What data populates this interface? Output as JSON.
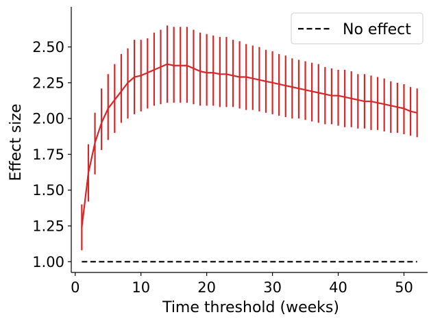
{
  "chart_data": {
    "type": "line",
    "title": "",
    "xlabel": "Time threshold (weeks)",
    "ylabel": "Effect size",
    "xlim": [
      -0.6,
      53.6
    ],
    "ylim": [
      0.925,
      2.78
    ],
    "xticks": [
      0,
      10,
      20,
      30,
      40,
      50
    ],
    "xtick_labels": [
      "0",
      "10",
      "20",
      "30",
      "40",
      "50"
    ],
    "yticks": [
      1.0,
      1.25,
      1.5,
      1.75,
      2.0,
      2.25,
      2.5
    ],
    "ytick_labels": [
      "1.00",
      "1.25",
      "1.50",
      "1.75",
      "2.00",
      "2.25",
      "2.50"
    ],
    "grid": false,
    "legend_position": "top-right",
    "series": [
      {
        "name": "",
        "color": "#d62728",
        "style": "solid-with-errorbars",
        "x": [
          1,
          2,
          3,
          4,
          5,
          6,
          7,
          8,
          9,
          10,
          11,
          12,
          13,
          14,
          15,
          16,
          17,
          18,
          19,
          20,
          21,
          22,
          23,
          24,
          25,
          26,
          27,
          28,
          29,
          30,
          31,
          32,
          33,
          34,
          35,
          36,
          37,
          38,
          39,
          40,
          41,
          42,
          43,
          44,
          45,
          46,
          47,
          48,
          49,
          50,
          51,
          52
        ],
        "y": [
          1.24,
          1.62,
          1.83,
          1.97,
          2.07,
          2.13,
          2.19,
          2.25,
          2.29,
          2.3,
          2.32,
          2.34,
          2.36,
          2.38,
          2.37,
          2.37,
          2.37,
          2.35,
          2.33,
          2.32,
          2.32,
          2.31,
          2.31,
          2.3,
          2.29,
          2.29,
          2.28,
          2.27,
          2.26,
          2.25,
          2.24,
          2.23,
          2.22,
          2.21,
          2.2,
          2.19,
          2.18,
          2.17,
          2.16,
          2.16,
          2.15,
          2.14,
          2.13,
          2.12,
          2.12,
          2.11,
          2.1,
          2.09,
          2.08,
          2.07,
          2.05,
          2.04
        ],
        "y_low": [
          1.08,
          1.42,
          1.61,
          1.78,
          1.85,
          1.9,
          1.97,
          2.0,
          2.03,
          2.05,
          2.07,
          2.09,
          2.1,
          2.11,
          2.11,
          2.11,
          2.11,
          2.1,
          2.09,
          2.09,
          2.09,
          2.08,
          2.08,
          2.08,
          2.07,
          2.06,
          2.06,
          2.05,
          2.04,
          2.03,
          2.02,
          2.01,
          2.0,
          2.0,
          1.99,
          1.98,
          1.97,
          1.96,
          1.96,
          1.95,
          1.94,
          1.94,
          1.93,
          1.93,
          1.92,
          1.92,
          1.91,
          1.9,
          1.9,
          1.89,
          1.88,
          1.87
        ],
        "y_high": [
          1.4,
          1.82,
          2.04,
          2.21,
          2.31,
          2.38,
          2.45,
          2.49,
          2.55,
          2.55,
          2.56,
          2.6,
          2.62,
          2.65,
          2.64,
          2.64,
          2.64,
          2.62,
          2.6,
          2.59,
          2.58,
          2.57,
          2.57,
          2.55,
          2.54,
          2.52,
          2.51,
          2.5,
          2.48,
          2.47,
          2.45,
          2.44,
          2.42,
          2.41,
          2.4,
          2.39,
          2.38,
          2.36,
          2.35,
          2.34,
          2.34,
          2.33,
          2.31,
          2.31,
          2.3,
          2.29,
          2.28,
          2.26,
          2.25,
          2.24,
          2.22,
          2.21
        ]
      },
      {
        "name": "No effect",
        "color": "#000000",
        "style": "dashed",
        "x": [
          1,
          52
        ],
        "y": [
          1.0,
          1.0
        ]
      }
    ]
  }
}
